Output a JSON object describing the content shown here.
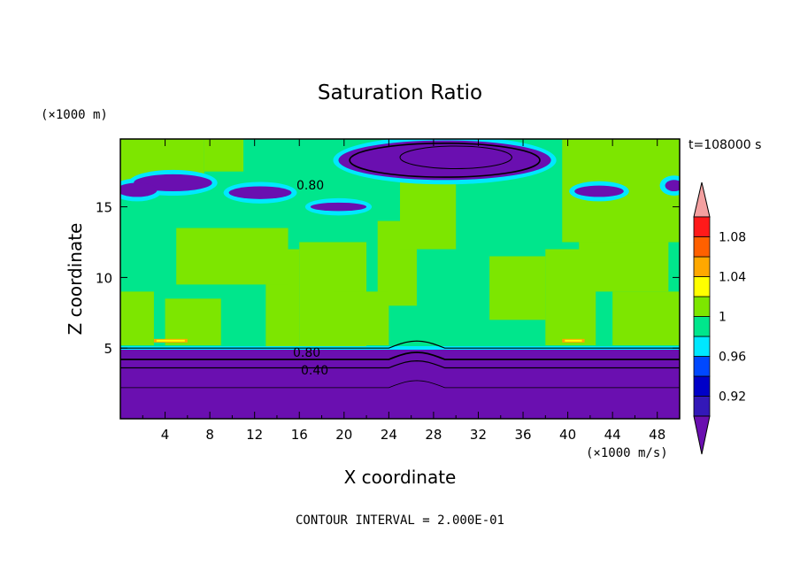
{
  "chart_data": {
    "type": "heatmap",
    "title": "Saturation Ratio",
    "xlabel": "X coordinate",
    "ylabel": "Z coordinate",
    "x_unit_label": "(×1000 m/s)",
    "y_unit_label": "(×1000 m)",
    "time_label": "t=108000 s",
    "footer": "CONTOUR INTERVAL = 2.000E-01",
    "xlim": [
      0,
      50
    ],
    "ylim": [
      0,
      19.8
    ],
    "x_ticks": [
      "4",
      "8",
      "12",
      "16",
      "20",
      "24",
      "28",
      "32",
      "36",
      "40",
      "44",
      "48"
    ],
    "y_ticks": [
      "5",
      "10",
      "15"
    ],
    "contour_labels": [
      "0.80",
      "0.80",
      "0.40"
    ],
    "colorbar": {
      "levels": [
        0.9,
        0.92,
        0.94,
        0.96,
        0.98,
        1.0,
        1.02,
        1.04,
        1.06,
        1.08,
        1.1
      ],
      "tick_labels": [
        "0.92",
        "0.96",
        "1",
        "1.04",
        "1.08"
      ],
      "colors": [
        "#6a0fb0",
        "#3318b8",
        "#0000c8",
        "#0048ff",
        "#00e8ff",
        "#00e68c",
        "#7de600",
        "#ffff00",
        "#ffa800",
        "#ff6000",
        "#ff1a1a",
        "#f4a0a0"
      ]
    },
    "regions": {
      "lower_layer": {
        "z_range": [
          0,
          5
        ],
        "value": "<0.90",
        "contours": [
          0.8,
          0.6,
          0.4
        ]
      },
      "main_cloud": {
        "z_range": [
          5,
          16
        ],
        "value": "0.98-1.02"
      },
      "upper_dry_patch": {
        "x_range": [
          27,
          35
        ],
        "z_range": [
          17,
          19.8
        ],
        "value": "<0.80"
      }
    }
  }
}
